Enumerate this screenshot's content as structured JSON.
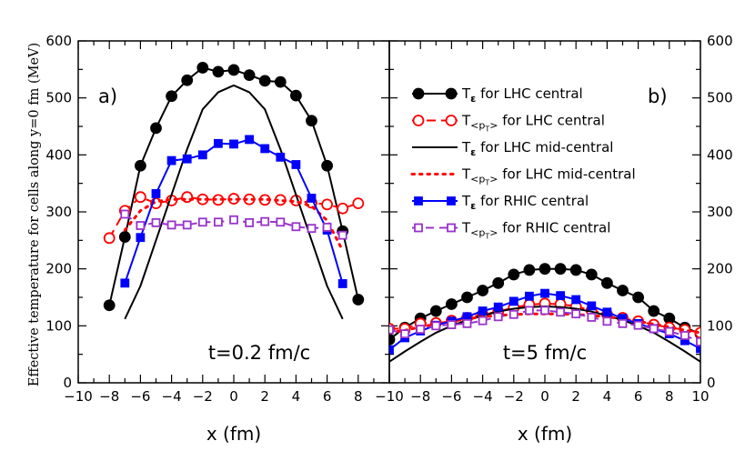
{
  "figure": {
    "ylabel": "Effective temperature for cells along y=0 fm (MeV)",
    "colors": {
      "black": "#000000",
      "red": "#ff0000",
      "blue": "#0000ff",
      "purple": "#9933cc"
    }
  },
  "chart_data": [
    {
      "type": "line",
      "panel_label": "a)",
      "annotation": "t=0.2 fm/c",
      "xlabel": "x (fm)",
      "xlim": [
        -10,
        10
      ],
      "ylim": [
        0,
        600
      ],
      "xticks": [
        -10,
        -8,
        -6,
        -4,
        -2,
        0,
        2,
        4,
        6,
        8
      ],
      "yticks": [
        0,
        100,
        200,
        300,
        400,
        500,
        600
      ],
      "series": [
        {
          "name": "T_ε for LHC central",
          "style": "black-circle",
          "x": [
            -8,
            -7,
            -6,
            -5,
            -4,
            -3,
            -2,
            -1,
            0,
            1,
            2,
            3,
            4,
            5,
            6,
            7,
            8
          ],
          "y": [
            136,
            256,
            381,
            447,
            503,
            531,
            553,
            546,
            549,
            540,
            530,
            528,
            504,
            460,
            381,
            266,
            146
          ]
        },
        {
          "name": "T_<pT> for LHC central",
          "style": "red-open-circle",
          "x": [
            -8,
            -7,
            -6,
            -5,
            -4,
            -3,
            -2,
            -1,
            0,
            1,
            2,
            3,
            4,
            5,
            6,
            7,
            8
          ],
          "y": [
            254,
            302,
            326,
            315,
            320,
            326,
            322,
            321,
            323,
            322,
            321,
            321,
            320,
            316,
            313,
            306,
            315
          ]
        },
        {
          "name": "T_ε for LHC mid-central",
          "style": "black-line",
          "x": [
            -7,
            -6,
            -5,
            -4,
            -3,
            -2,
            -1,
            0,
            1,
            2,
            3,
            4,
            5,
            6,
            7
          ],
          "y": [
            112,
            170,
            250,
            330,
            410,
            480,
            510,
            522,
            510,
            480,
            410,
            330,
            250,
            170,
            112
          ]
        },
        {
          "name": "T_<pT> for LHC mid-central",
          "style": "red-dotted",
          "x": [
            -7,
            -6,
            -5,
            -4,
            -3,
            -2,
            -1,
            0,
            1,
            2,
            3,
            4,
            5,
            6,
            7
          ],
          "y": [
            268,
            302,
            318,
            322,
            322,
            322,
            322,
            322,
            322,
            322,
            320,
            318,
            310,
            285,
            232
          ]
        },
        {
          "name": "T_ε for RHIC central",
          "style": "blue-square",
          "x": [
            -7,
            -6,
            -5,
            -4,
            -3,
            -2,
            -1,
            0,
            1,
            2,
            3,
            4,
            5,
            6,
            7
          ],
          "y": [
            175,
            255,
            332,
            390,
            393,
            400,
            420,
            419,
            427,
            411,
            396,
            383,
            324,
            268,
            174
          ]
        },
        {
          "name": "T_<pT> for RHIC central",
          "style": "purple-open-square",
          "x": [
            -7,
            -6,
            -5,
            -4,
            -3,
            -2,
            -1,
            0,
            1,
            2,
            3,
            4,
            5,
            6,
            7
          ],
          "y": [
            296,
            276,
            281,
            277,
            277,
            282,
            282,
            286,
            281,
            283,
            282,
            274,
            271,
            273,
            259
          ]
        }
      ]
    },
    {
      "type": "line",
      "panel_label": "b)",
      "annotation": "t=5 fm/c",
      "xlabel": "x (fm)",
      "xlim": [
        -10,
        10
      ],
      "ylim": [
        0,
        600
      ],
      "xticks": [
        -10,
        -8,
        -6,
        -4,
        -2,
        0,
        2,
        4,
        6,
        8,
        10
      ],
      "yticks": [
        0,
        100,
        200,
        300,
        400,
        500,
        600
      ],
      "series": [
        {
          "name": "T_ε for LHC central",
          "style": "black-circle",
          "x": [
            -10,
            -9,
            -8,
            -7,
            -6,
            -5,
            -4,
            -3,
            -2,
            -1,
            0,
            1,
            2,
            3,
            4,
            5,
            6,
            7,
            8,
            9,
            10
          ],
          "y": [
            76,
            97,
            113,
            126,
            138,
            150,
            162,
            175,
            190,
            198,
            200,
            200,
            198,
            190,
            175,
            162,
            150,
            126,
            113,
            97,
            86
          ]
        },
        {
          "name": "T_<pT> for LHC central",
          "style": "red-open-circle",
          "x": [
            -10,
            -9,
            -8,
            -7,
            -6,
            -5,
            -4,
            -3,
            -2,
            -1,
            0,
            1,
            2,
            3,
            4,
            5,
            6,
            7,
            8,
            9,
            10
          ],
          "y": [
            95,
            95,
            104,
            105,
            109,
            114,
            120,
            125,
            132,
            137,
            139,
            138,
            134,
            127,
            120,
            114,
            108,
            102,
            97,
            93,
            88
          ]
        },
        {
          "name": "T_ε for LHC mid-central",
          "style": "black-line",
          "x": [
            -10,
            -9,
            -8,
            -7,
            -6,
            -5,
            -4,
            -3,
            -2,
            -1,
            0,
            1,
            2,
            3,
            4,
            5,
            6,
            7,
            8,
            9,
            10
          ],
          "y": [
            37,
            55,
            72,
            88,
            100,
            110,
            118,
            125,
            130,
            133,
            134,
            133,
            130,
            125,
            118,
            110,
            100,
            88,
            72,
            55,
            37
          ]
        },
        {
          "name": "T_<pT> for LHC mid-central",
          "style": "red-dotted",
          "x": [
            -10,
            -9,
            -8,
            -7,
            -6,
            -5,
            -4,
            -3,
            -2,
            -1,
            0,
            1,
            2,
            3,
            4,
            5,
            6,
            7,
            8,
            9,
            10
          ],
          "y": [
            88,
            92,
            98,
            103,
            108,
            112,
            116,
            118,
            120,
            121,
            121,
            121,
            120,
            118,
            116,
            112,
            108,
            103,
            98,
            92,
            88
          ]
        },
        {
          "name": "T_ε for RHIC central",
          "style": "blue-square",
          "x": [
            -10,
            -9,
            -8,
            -7,
            -6,
            -5,
            -4,
            -3,
            -2,
            -1,
            0,
            1,
            2,
            3,
            4,
            5,
            6,
            7,
            8,
            9,
            10
          ],
          "y": [
            58,
            79,
            91,
            101,
            108,
            116,
            126,
            133,
            143,
            152,
            157,
            153,
            146,
            135,
            124,
            113,
            104,
            95,
            86,
            74,
            60
          ]
        },
        {
          "name": "T_<pT> for RHIC central",
          "style": "purple-open-square",
          "x": [
            -10,
            -9,
            -8,
            -7,
            -6,
            -5,
            -4,
            -3,
            -2,
            -1,
            0,
            1,
            2,
            3,
            4,
            5,
            6,
            7,
            8,
            9,
            10
          ],
          "y": [
            93,
            86,
            94,
            100,
            102,
            104,
            109,
            116,
            120,
            127,
            127,
            124,
            121,
            115,
            108,
            104,
            101,
            95,
            90,
            83,
            72
          ]
        }
      ]
    }
  ],
  "legend": {
    "placement": "panel-b-top",
    "entries": [
      {
        "main": "T",
        "sub": "ε",
        "rest": " for LHC central",
        "style": "black-circle"
      },
      {
        "main": "T",
        "sub": "<p",
        "subsub": "T",
        "sub_close": ">",
        "rest": " for LHC central",
        "style": "red-open-circle"
      },
      {
        "main": "T",
        "sub": "ε",
        "rest": " for LHC mid-central",
        "style": "black-line"
      },
      {
        "main": "T",
        "sub": "<p",
        "subsub": "T",
        "sub_close": ">",
        "rest": " for LHC mid-central",
        "style": "red-dotted"
      },
      {
        "main": "T",
        "sub": "ε",
        "rest": " for RHIC central",
        "style": "blue-square"
      },
      {
        "main": "T",
        "sub": "<p",
        "subsub": "T",
        "sub_close": ">",
        "rest": " for RHIC central",
        "style": "purple-open-square"
      }
    ]
  }
}
